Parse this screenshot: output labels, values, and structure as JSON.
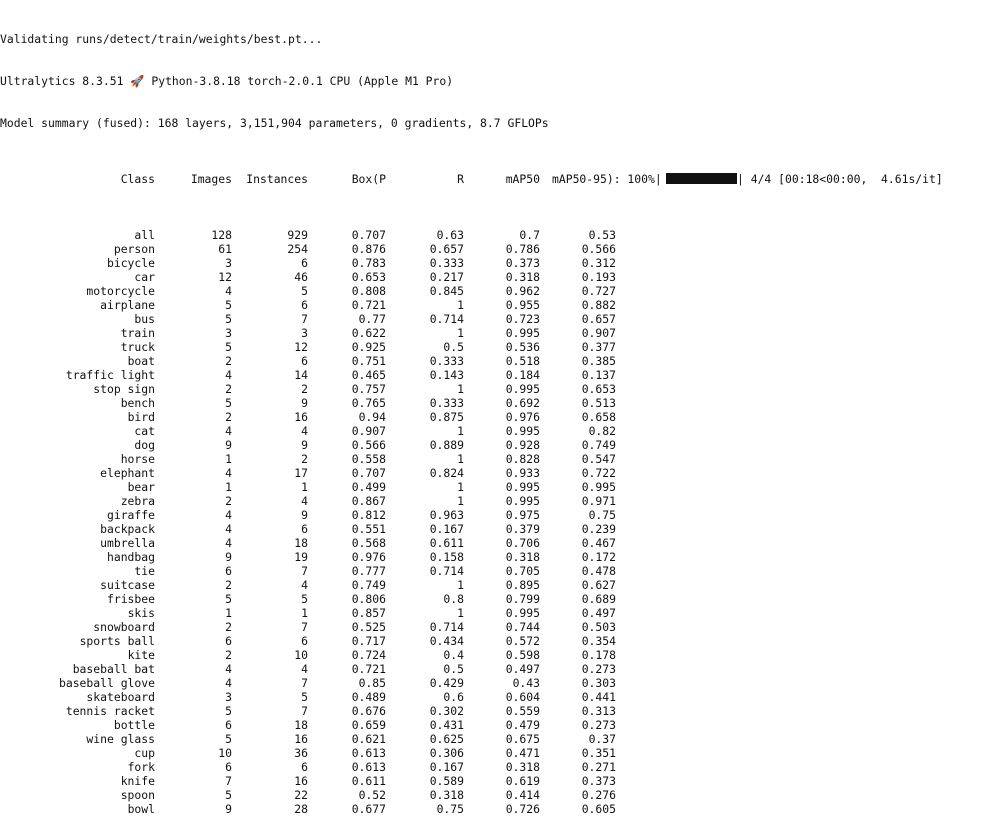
{
  "terminal": {
    "line1": "Validating runs/detect/train/weights/best.pt...",
    "line2_pre": "Ultralytics 8.3.51 ",
    "line2_post": " Python-3.8.18 torch-2.0.1 CPU (Apple M1 Pro)",
    "line3": "Model summary (fused): 168 layers, 3,151,904 parameters, 0 gradients, 8.7 GFLOPs"
  },
  "header": {
    "class": "Class",
    "images": "Images",
    "instances": "Instances",
    "box_p": "Box(P",
    "r": "R",
    "map50": "mAP50",
    "map50_95": "mAP50-95): 100%|",
    "progress_tail": "| 4/4 [00:18<00:00,  4.61s/it]"
  },
  "progress": {
    "percent": 100,
    "steps_done": 4,
    "steps_total": 4
  },
  "rows": [
    [
      "all",
      "128",
      "929",
      "0.707",
      "0.63",
      "0.7",
      "0.53"
    ],
    [
      "person",
      "61",
      "254",
      "0.876",
      "0.657",
      "0.786",
      "0.566"
    ],
    [
      "bicycle",
      "3",
      "6",
      "0.783",
      "0.333",
      "0.373",
      "0.312"
    ],
    [
      "car",
      "12",
      "46",
      "0.653",
      "0.217",
      "0.318",
      "0.193"
    ],
    [
      "motorcycle",
      "4",
      "5",
      "0.808",
      "0.845",
      "0.962",
      "0.727"
    ],
    [
      "airplane",
      "5",
      "6",
      "0.721",
      "1",
      "0.955",
      "0.882"
    ],
    [
      "bus",
      "5",
      "7",
      "0.77",
      "0.714",
      "0.723",
      "0.657"
    ],
    [
      "train",
      "3",
      "3",
      "0.622",
      "1",
      "0.995",
      "0.907"
    ],
    [
      "truck",
      "5",
      "12",
      "0.925",
      "0.5",
      "0.536",
      "0.377"
    ],
    [
      "boat",
      "2",
      "6",
      "0.751",
      "0.333",
      "0.518",
      "0.385"
    ],
    [
      "traffic light",
      "4",
      "14",
      "0.465",
      "0.143",
      "0.184",
      "0.137"
    ],
    [
      "stop sign",
      "2",
      "2",
      "0.757",
      "1",
      "0.995",
      "0.653"
    ],
    [
      "bench",
      "5",
      "9",
      "0.765",
      "0.333",
      "0.692",
      "0.513"
    ],
    [
      "bird",
      "2",
      "16",
      "0.94",
      "0.875",
      "0.976",
      "0.658"
    ],
    [
      "cat",
      "4",
      "4",
      "0.907",
      "1",
      "0.995",
      "0.82"
    ],
    [
      "dog",
      "9",
      "9",
      "0.566",
      "0.889",
      "0.928",
      "0.749"
    ],
    [
      "horse",
      "1",
      "2",
      "0.558",
      "1",
      "0.828",
      "0.547"
    ],
    [
      "elephant",
      "4",
      "17",
      "0.707",
      "0.824",
      "0.933",
      "0.722"
    ],
    [
      "bear",
      "1",
      "1",
      "0.499",
      "1",
      "0.995",
      "0.995"
    ],
    [
      "zebra",
      "2",
      "4",
      "0.867",
      "1",
      "0.995",
      "0.971"
    ],
    [
      "giraffe",
      "4",
      "9",
      "0.812",
      "0.963",
      "0.975",
      "0.75"
    ],
    [
      "backpack",
      "4",
      "6",
      "0.551",
      "0.167",
      "0.379",
      "0.239"
    ],
    [
      "umbrella",
      "4",
      "18",
      "0.568",
      "0.611",
      "0.706",
      "0.467"
    ],
    [
      "handbag",
      "9",
      "19",
      "0.976",
      "0.158",
      "0.318",
      "0.172"
    ],
    [
      "tie",
      "6",
      "7",
      "0.777",
      "0.714",
      "0.705",
      "0.478"
    ],
    [
      "suitcase",
      "2",
      "4",
      "0.749",
      "1",
      "0.895",
      "0.627"
    ],
    [
      "frisbee",
      "5",
      "5",
      "0.806",
      "0.8",
      "0.799",
      "0.689"
    ],
    [
      "skis",
      "1",
      "1",
      "0.857",
      "1",
      "0.995",
      "0.497"
    ],
    [
      "snowboard",
      "2",
      "7",
      "0.525",
      "0.714",
      "0.744",
      "0.503"
    ],
    [
      "sports ball",
      "6",
      "6",
      "0.717",
      "0.434",
      "0.572",
      "0.354"
    ],
    [
      "kite",
      "2",
      "10",
      "0.724",
      "0.4",
      "0.598",
      "0.178"
    ],
    [
      "baseball bat",
      "4",
      "4",
      "0.721",
      "0.5",
      "0.497",
      "0.273"
    ],
    [
      "baseball glove",
      "4",
      "7",
      "0.85",
      "0.429",
      "0.43",
      "0.303"
    ],
    [
      "skateboard",
      "3",
      "5",
      "0.489",
      "0.6",
      "0.604",
      "0.441"
    ],
    [
      "tennis racket",
      "5",
      "7",
      "0.676",
      "0.302",
      "0.559",
      "0.313"
    ],
    [
      "bottle",
      "6",
      "18",
      "0.659",
      "0.431",
      "0.479",
      "0.273"
    ],
    [
      "wine glass",
      "5",
      "16",
      "0.621",
      "0.625",
      "0.675",
      "0.37"
    ],
    [
      "cup",
      "10",
      "36",
      "0.613",
      "0.306",
      "0.471",
      "0.351"
    ],
    [
      "fork",
      "6",
      "6",
      "0.613",
      "0.167",
      "0.318",
      "0.271"
    ],
    [
      "knife",
      "7",
      "16",
      "0.611",
      "0.589",
      "0.619",
      "0.373"
    ],
    [
      "spoon",
      "5",
      "22",
      "0.52",
      "0.318",
      "0.414",
      "0.276"
    ],
    [
      "bowl",
      "9",
      "28",
      "0.677",
      "0.75",
      "0.726",
      "0.605"
    ]
  ]
}
